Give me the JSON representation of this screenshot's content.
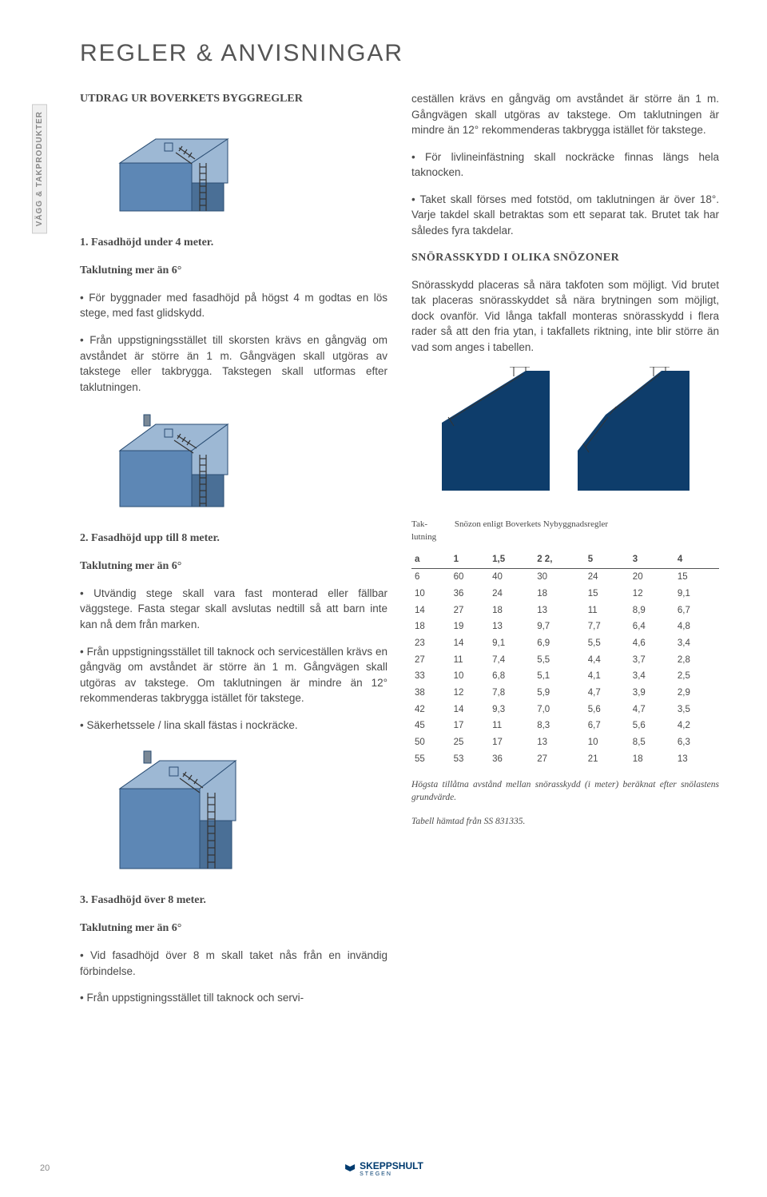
{
  "side_tab": "VÄGG & TAKPRODUKTER",
  "page_title": "REGLER & ANVISNINGAR",
  "left": {
    "utdrag": "UTDRAG UR BOVERKETS BYGGREGLER",
    "h1a": "1. Fasadhöjd under 4 meter.",
    "h1b": "Taklutning mer än 6°",
    "p1": "• För byggnader med fasadhöjd på högst 4 m godtas en lös stege, med fast glidskydd.",
    "p2": "• Från uppstigningsstället till skorsten krävs en gångväg om avståndet är större än 1 m. Gångvägen skall utgöras av takstege eller takbrygga. Takstegen skall utformas efter taklutningen.",
    "h2a": "2. Fasadhöjd upp till 8 meter.",
    "h2b": "Taklutning mer än 6°",
    "p3": "• Utvändig stege skall vara fast monterad eller fällbar väggstege. Fasta stegar skall avslutas nedtill så att barn inte kan nå dem från marken.",
    "p4": "• Från uppstigningsstället till taknock och serviceställen krävs en gångväg om avståndet är större än 1 m. Gångvägen skall utgöras av takstege. Om taklutningen är mindre än 12° rekommenderas takbrygga istället för takstege.",
    "p5": "• Säkerhetssele / lina skall fästas i nockräcke.",
    "h3a": "3. Fasadhöjd över 8 meter.",
    "h3b": "Taklutning mer än 6°",
    "p6": "• Vid fasadhöjd över 8 m skall taket nås från en invändig förbindelse.",
    "p7": "• Från uppstigningsstället till taknock och servi-"
  },
  "right": {
    "p1": "ceställen krävs en gångväg om avståndet är större än 1 m. Gångvägen skall utgöras av takstege. Om taklutningen är mindre än 12° rekommenderas takbrygga istället för takstege.",
    "p2": "• För livlineinfästning skall nockräcke finnas längs hela taknocken.",
    "p3": "• Taket skall förses med fotstöd, om taklutningen är över 18°. Varje takdel skall betraktas som ett separat tak. Brutet tak har således fyra takdelar.",
    "snohead": "SNÖRASSKYDD I OLIKA SNÖZONER",
    "p4": "Snörasskydd placeras så nära takfoten som möjligt. Vid brutet tak placeras snörasskyddet så nära brytningen som möjligt, dock ovanför. Vid långa takfall monteras snörasskydd i flera rader så att den fria ytan, i takfallets riktning, inte blir större än vad som anges i tabellen.",
    "table_title1": "Tak-",
    "table_title1b": "lutning",
    "table_title2": "Snözon enligt Boverkets Nybyggnadsregler",
    "table_cols": [
      "a",
      "1",
      "1,5",
      "2 2,",
      "5",
      "3",
      "4"
    ],
    "table_rows": [
      [
        "6",
        "60",
        "40",
        "30",
        "24",
        "20",
        "15"
      ],
      [
        "10",
        "36",
        "24",
        "18",
        "15",
        "12",
        "9,1"
      ],
      [
        "14",
        "27",
        "18",
        "13",
        "11",
        "8,9",
        "6,7"
      ],
      [
        "18",
        "19",
        "13",
        "9,7",
        "7,7",
        "6,4",
        "4,8"
      ],
      [
        "23",
        "14",
        "9,1",
        "6,9",
        "5,5",
        "4,6",
        "3,4"
      ],
      [
        "27",
        "11",
        "7,4",
        "5,5",
        "4,4",
        "3,7",
        "2,8"
      ],
      [
        "33",
        "10",
        "6,8",
        "5,1",
        "4,1",
        "3,4",
        "2,5"
      ],
      [
        "38",
        "12",
        "7,8",
        "5,9",
        "4,7",
        "3,9",
        "2,9"
      ],
      [
        "42",
        "14",
        "9,3",
        "7,0",
        "5,6",
        "4,7",
        "3,5"
      ],
      [
        "45",
        "17",
        "11",
        "8,3",
        "6,7",
        "5,6",
        "4,2"
      ],
      [
        "50",
        "25",
        "17",
        "13",
        "10",
        "8,5",
        "6,3"
      ],
      [
        "55",
        "53",
        "36",
        "27",
        "21",
        "18",
        "13"
      ]
    ],
    "caption1": "Högsta tillåtna avstånd mellan snörasskydd (i meter) beräknat efter snölastens grundvärde.",
    "caption2": "Tabell hämtad från SS 831335."
  },
  "page_num": "20",
  "logo": "SKEPPSHULT",
  "logo_sub": "STEGEN",
  "colors": {
    "house_fill": "#5d87b5",
    "house_dark": "#0e3d6b",
    "roof_fill": "#0e3d6b",
    "text": "#4a4a4a"
  }
}
